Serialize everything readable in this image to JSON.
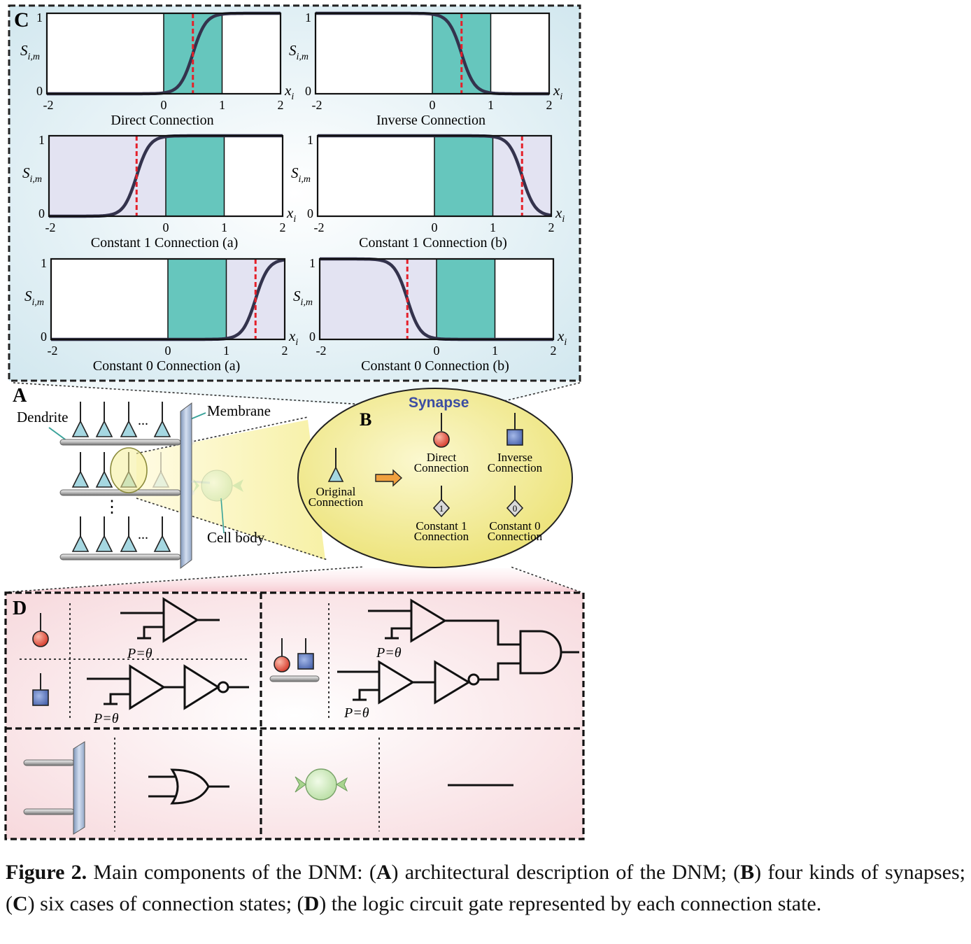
{
  "panel_c": {
    "label": "C",
    "axes": {
      "ylabel_s": "S",
      "ylabel_sub": "i,m",
      "xlabel_x": "x",
      "xlabel_sub": "i",
      "y_ticks": [
        "1",
        "0"
      ],
      "x_ticks": [
        "-2",
        "0",
        "1",
        "2"
      ]
    },
    "plots": [
      {
        "title": "Direct Connection"
      },
      {
        "title": "Inverse Connection"
      },
      {
        "title": "Constant 1 Connection (a)"
      },
      {
        "title": "Constant 1 Connection (b)"
      },
      {
        "title": "Constant 0 Connection (a)"
      },
      {
        "title": "Constant 0 Connection (b)"
      }
    ]
  },
  "panel_a": {
    "label": "A",
    "dendrite": "Dendrite",
    "membrane": "Membrane",
    "cell_body": "Cell body",
    "dots": "...",
    "vdots": "⋮"
  },
  "panel_b": {
    "label": "B",
    "title": "Synapse",
    "original_1": "Original",
    "original_2": "Connection",
    "direct_1": "Direct",
    "direct_2": "Connection",
    "inverse_1": "Inverse",
    "inverse_2": "Connection",
    "const1_1": "Constant 1",
    "const1_2": "Connection",
    "const0_1": "Constant 0",
    "const0_2": "Connection",
    "const1_glyph": "1",
    "const0_glyph": "0"
  },
  "panel_d": {
    "label": "D",
    "threshold": "P=θ"
  },
  "caption": {
    "fig_label": "Figure 2.",
    "intro": " Main components of the DNM: (",
    "a": "A",
    "a_text": ") architectural description of the DNM; (",
    "b": "B",
    "b_text": ") four kinds of synapses; (",
    "c": "C",
    "c_text": ") six cases of connection states; (",
    "d": "D",
    "d_text": ") the logic circuit gate represented by each connection state."
  },
  "colors": {
    "teal": "#66c6bd",
    "lavender": "#e3e3f2",
    "panel_c_bg": "#daeff3",
    "panel_d_bg": "#fae6e8",
    "ellipse": "#f3ec8c",
    "curve": "#34334d",
    "threshold": "#e5202a",
    "red_ball": "#e8553f",
    "blue_square": "#5370b8"
  }
}
